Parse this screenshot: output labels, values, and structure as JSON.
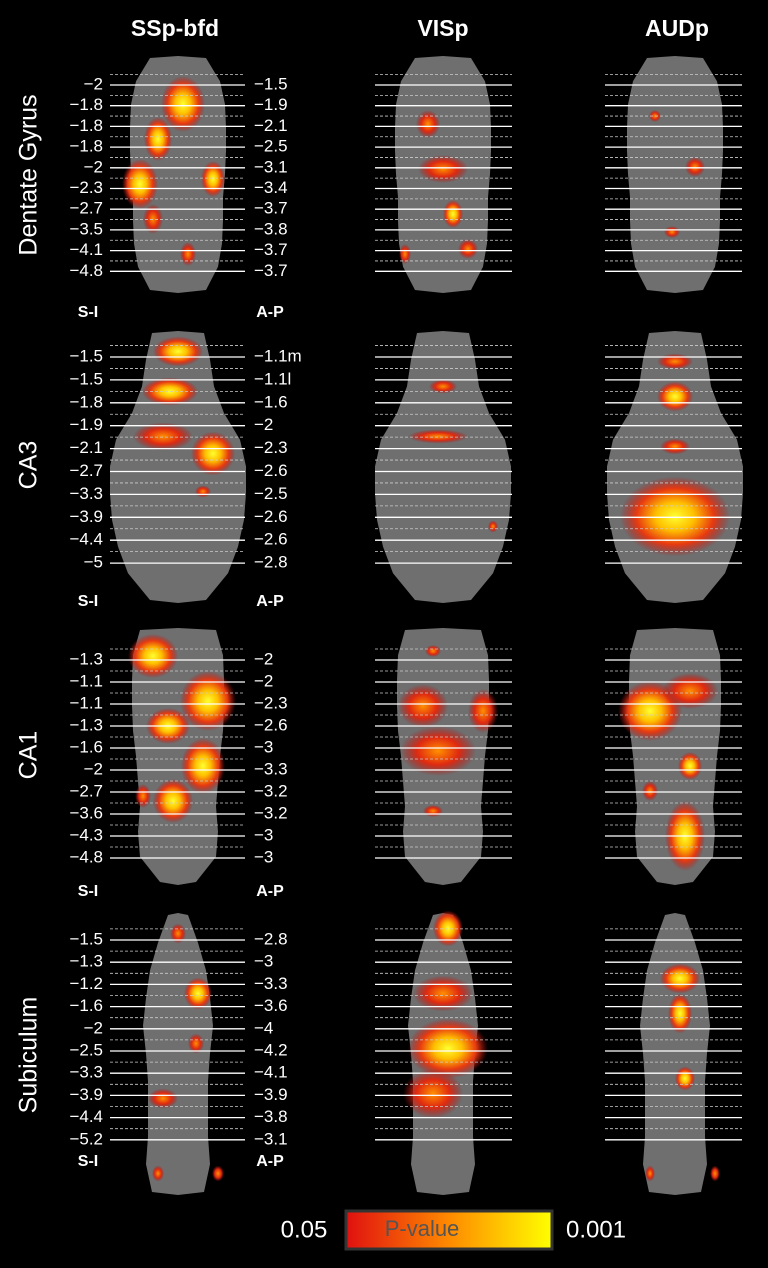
{
  "column_headers": [
    "SSp-bfd",
    "VISp",
    "AUDp"
  ],
  "rows": [
    {
      "label": "Dentate Gyrus",
      "si_caption": "S-I",
      "ap_caption": "A-P",
      "si": [
        "−2",
        "−1.8",
        "−1.8",
        "−1.8",
        "−2",
        "−2.3",
        "−2.7",
        "−3.5",
        "−4.1",
        "−4.8"
      ],
      "ap": [
        "−1.5",
        "−1.9",
        "−2.1",
        "−2.5",
        "−3.1",
        "−3.4",
        "−3.7",
        "−3.8",
        "−3.7",
        "−3.7"
      ]
    },
    {
      "label": "CA3",
      "si_caption": "S-I",
      "ap_caption": "A-P",
      "si": [
        "−1.5",
        "−1.5",
        "−1.8",
        "−1.9",
        "−2.1",
        "−2.7",
        "−3.3",
        "−3.9",
        "−4.4",
        "−5"
      ],
      "ap": [
        "−1.1m",
        "−1.1l",
        "−1.6",
        "−2",
        "−2.3",
        "−2.6",
        "−2.5",
        "−2.6",
        "−2.6",
        "−2.8"
      ]
    },
    {
      "label": "CA1",
      "si_caption": "S-I",
      "ap_caption": "A-P",
      "si": [
        "−1.3",
        "−1.1",
        "−1.1",
        "−1.3",
        "−1.6",
        "−2",
        "−2.7",
        "−3.6",
        "−4.3",
        "−4.8"
      ],
      "ap": [
        "−2",
        "−2",
        "−2.3",
        "−2.6",
        "−3",
        "−3.3",
        "−3.2",
        "−3.2",
        "−3",
        "−3"
      ]
    },
    {
      "label": "Subiculum",
      "si_caption": "S-I",
      "ap_caption": "A-P",
      "si": [
        "−1.5",
        "−1.3",
        "−1.2",
        "−1.6",
        "−2",
        "−2.5",
        "−3.3",
        "−3.9",
        "−4.4",
        "−5.2"
      ],
      "ap": [
        "−2.8",
        "−3",
        "−3.3",
        "−3.6",
        "−4",
        "−4.2",
        "−4.1",
        "−3.9",
        "−3.8",
        "−3.1"
      ]
    }
  ],
  "colorbar": {
    "min_label": "0.05",
    "title": "P-value",
    "max_label": "0.001"
  }
}
